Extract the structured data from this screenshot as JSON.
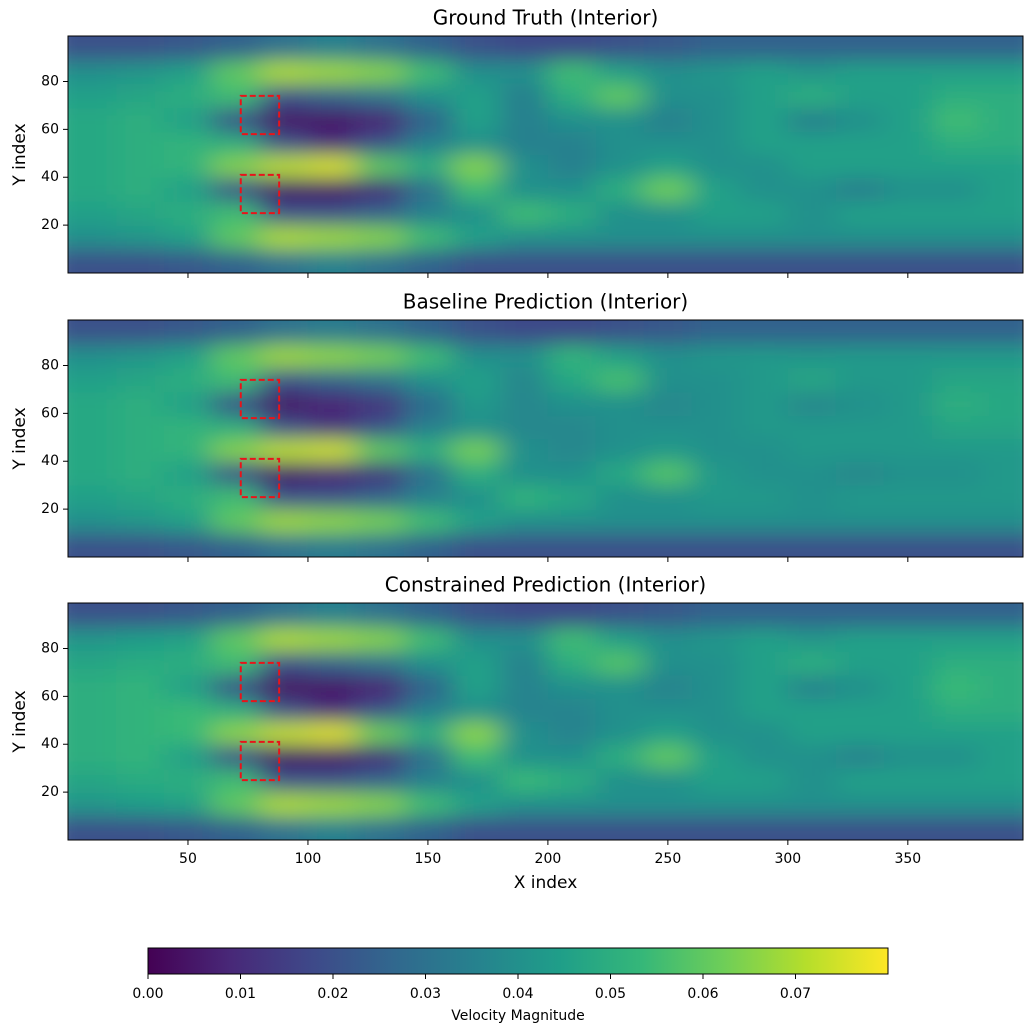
{
  "chart_data": [
    {
      "type": "heatmap",
      "title": "Ground Truth (Interior)",
      "ylabel": "Y index",
      "xlim": [
        0,
        398
      ],
      "ylim": [
        0,
        99
      ],
      "xticks": [
        50,
        100,
        150,
        200,
        250,
        300,
        350
      ],
      "yticks": [
        20,
        40,
        60,
        80
      ],
      "boxes": [
        {
          "x": [
            72,
            88
          ],
          "y": [
            58,
            74
          ]
        },
        {
          "x": [
            72,
            88
          ],
          "y": [
            25,
            41
          ]
        }
      ],
      "x": [
        10,
        30,
        50,
        70,
        90,
        110,
        130,
        150,
        170,
        190,
        210,
        230,
        250,
        270,
        290,
        310,
        330,
        350,
        370,
        390
      ],
      "y": [
        5,
        15,
        25,
        35,
        45,
        54,
        64,
        74,
        84,
        94
      ],
      "z": [
        [
          0.02,
          0.02,
          0.022,
          0.025,
          0.03,
          0.035,
          0.03,
          0.025,
          0.02,
          0.02,
          0.02,
          0.02,
          0.02,
          0.02,
          0.02,
          0.02,
          0.02,
          0.02,
          0.02,
          0.02
        ],
        [
          0.04,
          0.042,
          0.045,
          0.06,
          0.07,
          0.068,
          0.065,
          0.055,
          0.045,
          0.04,
          0.04,
          0.04,
          0.04,
          0.04,
          0.04,
          0.04,
          0.04,
          0.04,
          0.04,
          0.04
        ],
        [
          0.045,
          0.047,
          0.05,
          0.055,
          0.02,
          0.02,
          0.025,
          0.035,
          0.04,
          0.055,
          0.05,
          0.04,
          0.04,
          0.045,
          0.045,
          0.04,
          0.045,
          0.045,
          0.045,
          0.045
        ],
        [
          0.048,
          0.05,
          0.045,
          0.02,
          0.005,
          0.005,
          0.01,
          0.03,
          0.055,
          0.04,
          0.04,
          0.05,
          0.062,
          0.045,
          0.04,
          0.04,
          0.035,
          0.04,
          0.04,
          0.045
        ],
        [
          0.048,
          0.05,
          0.052,
          0.065,
          0.072,
          0.075,
          0.06,
          0.05,
          0.065,
          0.04,
          0.035,
          0.04,
          0.045,
          0.04,
          0.04,
          0.045,
          0.045,
          0.045,
          0.045,
          0.045
        ],
        [
          0.048,
          0.05,
          0.052,
          0.05,
          0.02,
          0.01,
          0.02,
          0.035,
          0.04,
          0.035,
          0.035,
          0.04,
          0.04,
          0.04,
          0.045,
          0.045,
          0.045,
          0.045,
          0.05,
          0.05
        ],
        [
          0.048,
          0.05,
          0.045,
          0.02,
          0.005,
          0.005,
          0.008,
          0.025,
          0.045,
          0.035,
          0.04,
          0.04,
          0.035,
          0.04,
          0.045,
          0.035,
          0.04,
          0.045,
          0.055,
          0.05
        ],
        [
          0.045,
          0.047,
          0.05,
          0.055,
          0.02,
          0.025,
          0.03,
          0.04,
          0.045,
          0.035,
          0.05,
          0.06,
          0.04,
          0.04,
          0.045,
          0.05,
          0.045,
          0.045,
          0.05,
          0.05
        ],
        [
          0.04,
          0.042,
          0.045,
          0.06,
          0.07,
          0.068,
          0.065,
          0.055,
          0.04,
          0.04,
          0.055,
          0.045,
          0.04,
          0.042,
          0.045,
          0.042,
          0.045,
          0.045,
          0.045,
          0.045
        ],
        [
          0.02,
          0.02,
          0.022,
          0.025,
          0.03,
          0.035,
          0.03,
          0.025,
          0.02,
          0.018,
          0.018,
          0.02,
          0.022,
          0.025,
          0.025,
          0.025,
          0.025,
          0.025,
          0.025,
          0.025
        ]
      ]
    },
    {
      "type": "heatmap",
      "title": "Baseline Prediction (Interior)",
      "ylabel": "Y index",
      "xlim": [
        0,
        398
      ],
      "ylim": [
        0,
        99
      ],
      "xticks": [
        50,
        100,
        150,
        200,
        250,
        300,
        350
      ],
      "yticks": [
        20,
        40,
        60,
        80
      ],
      "boxes": [
        {
          "x": [
            72,
            88
          ],
          "y": [
            58,
            74
          ]
        },
        {
          "x": [
            72,
            88
          ],
          "y": [
            25,
            41
          ]
        }
      ],
      "x": [
        10,
        30,
        50,
        70,
        90,
        110,
        130,
        150,
        170,
        190,
        210,
        230,
        250,
        270,
        290,
        310,
        330,
        350,
        370,
        390
      ],
      "y": [
        5,
        15,
        25,
        35,
        45,
        54,
        64,
        74,
        84,
        94
      ],
      "z": [
        [
          0.02,
          0.02,
          0.022,
          0.025,
          0.03,
          0.033,
          0.03,
          0.025,
          0.02,
          0.02,
          0.02,
          0.02,
          0.02,
          0.02,
          0.02,
          0.02,
          0.02,
          0.02,
          0.02,
          0.02
        ],
        [
          0.04,
          0.042,
          0.045,
          0.06,
          0.068,
          0.066,
          0.063,
          0.055,
          0.045,
          0.04,
          0.04,
          0.04,
          0.04,
          0.04,
          0.04,
          0.04,
          0.04,
          0.04,
          0.04,
          0.04
        ],
        [
          0.045,
          0.047,
          0.05,
          0.055,
          0.02,
          0.02,
          0.025,
          0.035,
          0.04,
          0.052,
          0.048,
          0.04,
          0.04,
          0.043,
          0.043,
          0.04,
          0.043,
          0.043,
          0.043,
          0.043
        ],
        [
          0.048,
          0.05,
          0.045,
          0.02,
          0.005,
          0.008,
          0.012,
          0.03,
          0.05,
          0.04,
          0.04,
          0.048,
          0.058,
          0.043,
          0.04,
          0.04,
          0.037,
          0.04,
          0.04,
          0.043
        ],
        [
          0.048,
          0.05,
          0.052,
          0.065,
          0.072,
          0.074,
          0.06,
          0.05,
          0.063,
          0.04,
          0.037,
          0.04,
          0.043,
          0.04,
          0.04,
          0.043,
          0.043,
          0.043,
          0.043,
          0.043
        ],
        [
          0.048,
          0.05,
          0.052,
          0.05,
          0.02,
          0.012,
          0.02,
          0.035,
          0.04,
          0.037,
          0.037,
          0.04,
          0.04,
          0.04,
          0.043,
          0.043,
          0.043,
          0.043,
          0.047,
          0.047
        ],
        [
          0.048,
          0.05,
          0.045,
          0.02,
          0.005,
          0.008,
          0.012,
          0.028,
          0.043,
          0.037,
          0.04,
          0.04,
          0.037,
          0.04,
          0.043,
          0.037,
          0.04,
          0.043,
          0.05,
          0.048
        ],
        [
          0.045,
          0.047,
          0.05,
          0.055,
          0.02,
          0.025,
          0.03,
          0.04,
          0.045,
          0.037,
          0.048,
          0.056,
          0.04,
          0.04,
          0.043,
          0.047,
          0.043,
          0.043,
          0.047,
          0.047
        ],
        [
          0.04,
          0.042,
          0.045,
          0.06,
          0.068,
          0.066,
          0.063,
          0.055,
          0.04,
          0.04,
          0.052,
          0.045,
          0.04,
          0.042,
          0.043,
          0.042,
          0.043,
          0.043,
          0.043,
          0.043
        ],
        [
          0.02,
          0.02,
          0.022,
          0.025,
          0.03,
          0.033,
          0.03,
          0.025,
          0.02,
          0.018,
          0.018,
          0.02,
          0.022,
          0.025,
          0.025,
          0.025,
          0.025,
          0.025,
          0.025,
          0.025
        ]
      ]
    },
    {
      "type": "heatmap",
      "title": "Constrained Prediction (Interior)",
      "ylabel": "Y index",
      "xlabel": "X index",
      "xlim": [
        0,
        398
      ],
      "ylim": [
        0,
        99
      ],
      "xticks": [
        50,
        100,
        150,
        200,
        250,
        300,
        350
      ],
      "yticks": [
        20,
        40,
        60,
        80
      ],
      "boxes": [
        {
          "x": [
            72,
            88
          ],
          "y": [
            58,
            74
          ]
        },
        {
          "x": [
            72,
            88
          ],
          "y": [
            25,
            41
          ]
        }
      ],
      "x": [
        10,
        30,
        50,
        70,
        90,
        110,
        130,
        150,
        170,
        190,
        210,
        230,
        250,
        270,
        290,
        310,
        330,
        350,
        370,
        390
      ],
      "y": [
        5,
        15,
        25,
        35,
        45,
        54,
        64,
        74,
        84,
        94
      ],
      "z": [
        [
          0.02,
          0.02,
          0.022,
          0.025,
          0.03,
          0.035,
          0.03,
          0.025,
          0.02,
          0.02,
          0.02,
          0.02,
          0.02,
          0.02,
          0.02,
          0.02,
          0.02,
          0.02,
          0.02,
          0.02
        ],
        [
          0.042,
          0.044,
          0.046,
          0.06,
          0.07,
          0.068,
          0.065,
          0.055,
          0.045,
          0.04,
          0.04,
          0.04,
          0.04,
          0.04,
          0.04,
          0.04,
          0.04,
          0.04,
          0.04,
          0.04
        ],
        [
          0.047,
          0.049,
          0.05,
          0.055,
          0.02,
          0.02,
          0.025,
          0.035,
          0.04,
          0.054,
          0.05,
          0.04,
          0.04,
          0.045,
          0.045,
          0.04,
          0.045,
          0.045,
          0.045,
          0.045
        ],
        [
          0.05,
          0.052,
          0.045,
          0.02,
          0.004,
          0.005,
          0.01,
          0.03,
          0.055,
          0.04,
          0.04,
          0.05,
          0.06,
          0.045,
          0.04,
          0.04,
          0.036,
          0.04,
          0.04,
          0.045
        ],
        [
          0.05,
          0.052,
          0.054,
          0.066,
          0.073,
          0.076,
          0.062,
          0.05,
          0.066,
          0.04,
          0.036,
          0.04,
          0.045,
          0.04,
          0.04,
          0.045,
          0.045,
          0.045,
          0.045,
          0.045
        ],
        [
          0.05,
          0.052,
          0.054,
          0.05,
          0.02,
          0.01,
          0.02,
          0.035,
          0.04,
          0.036,
          0.036,
          0.04,
          0.04,
          0.04,
          0.045,
          0.045,
          0.045,
          0.045,
          0.05,
          0.05
        ],
        [
          0.05,
          0.052,
          0.045,
          0.02,
          0.004,
          0.005,
          0.008,
          0.025,
          0.045,
          0.036,
          0.04,
          0.04,
          0.036,
          0.04,
          0.045,
          0.036,
          0.04,
          0.045,
          0.054,
          0.05
        ],
        [
          0.047,
          0.049,
          0.05,
          0.055,
          0.02,
          0.025,
          0.03,
          0.04,
          0.045,
          0.036,
          0.05,
          0.058,
          0.04,
          0.04,
          0.045,
          0.05,
          0.045,
          0.045,
          0.05,
          0.05
        ],
        [
          0.042,
          0.044,
          0.046,
          0.06,
          0.07,
          0.068,
          0.065,
          0.055,
          0.04,
          0.04,
          0.055,
          0.045,
          0.04,
          0.042,
          0.045,
          0.042,
          0.045,
          0.045,
          0.045,
          0.045
        ],
        [
          0.02,
          0.02,
          0.022,
          0.025,
          0.03,
          0.035,
          0.03,
          0.025,
          0.02,
          0.018,
          0.018,
          0.02,
          0.022,
          0.025,
          0.025,
          0.025,
          0.025,
          0.025,
          0.025,
          0.025
        ]
      ]
    }
  ],
  "colorbar": {
    "label": "Velocity Magnitude",
    "colormap": "viridis",
    "lim": [
      0,
      0.08
    ],
    "ticks": [
      {
        "value": 0,
        "label": "0.00"
      },
      {
        "value": 0.01,
        "label": "0.01"
      },
      {
        "value": 0.02,
        "label": "0.02"
      },
      {
        "value": 0.03,
        "label": "0.03"
      },
      {
        "value": 0.04,
        "label": "0.04"
      },
      {
        "value": 0.05,
        "label": "0.05"
      },
      {
        "value": 0.06,
        "label": "0.06"
      },
      {
        "value": 0.07,
        "label": "0.07"
      }
    ]
  }
}
